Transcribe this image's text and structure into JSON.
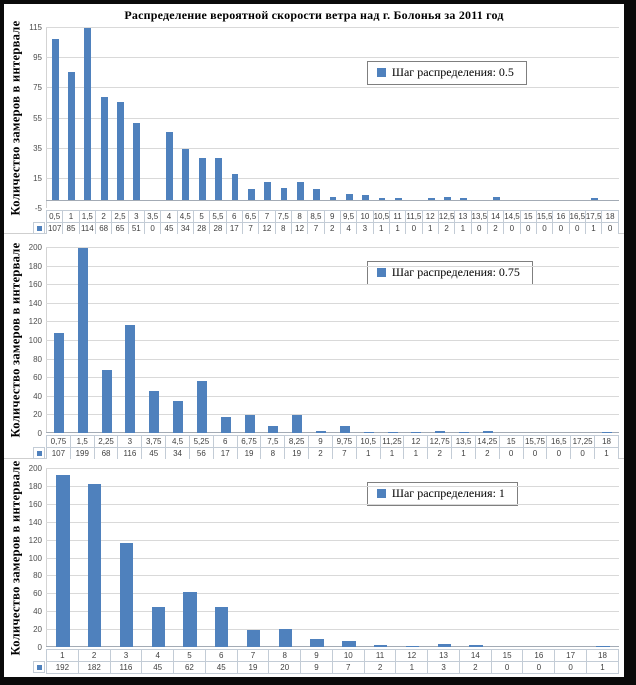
{
  "title": "Распределение вероятной скорости ветра над г. Болонья за 2011 год",
  "colors": {
    "bar": "#4f81bd",
    "gridline": "#d9d9d9",
    "axis_line": "#a3abb5",
    "table_border": "#c3ccd6",
    "text": "#404040"
  },
  "chart_data": [
    {
      "type": "bar",
      "legend": "Шаг распределения: 0.5",
      "ylabel": "Количество замеров в интервале",
      "categories": [
        "0,5",
        "1",
        "1,5",
        "2",
        "2,5",
        "3",
        "3,5",
        "4",
        "4,5",
        "5",
        "5,5",
        "6",
        "6,5",
        "7",
        "7,5",
        "8",
        "8,5",
        "9",
        "9,5",
        "10",
        "10,5",
        "11",
        "11,5",
        "12",
        "12,5",
        "13",
        "13,5",
        "14",
        "14,5",
        "15",
        "15,5",
        "16",
        "16,5",
        "17,5",
        "18"
      ],
      "values": [
        107,
        85,
        114,
        68,
        65,
        51,
        0,
        45,
        34,
        28,
        28,
        17,
        7,
        12,
        8,
        12,
        7,
        2,
        4,
        3,
        1,
        1,
        0,
        1,
        2,
        1,
        0,
        2,
        0,
        0,
        0,
        0,
        0,
        1,
        0
      ],
      "ylim": [
        -5,
        115
      ],
      "yticks": [
        115,
        95,
        75,
        55,
        35,
        15,
        -5
      ],
      "grid": true,
      "legend_position": "inside-top-right",
      "data_table": true
    },
    {
      "type": "bar",
      "legend": "Шаг распределения: 0.75",
      "ylabel": "Количество замеров в интервале",
      "categories": [
        "0,75",
        "1,5",
        "2,25",
        "3",
        "3,75",
        "4,5",
        "5,25",
        "6",
        "6,75",
        "7,5",
        "8,25",
        "9",
        "9,75",
        "10,5",
        "11,25",
        "12",
        "12,75",
        "13,5",
        "14,25",
        "15",
        "15,75",
        "16,5",
        "17,25",
        "18"
      ],
      "values": [
        107,
        199,
        68,
        116,
        45,
        34,
        56,
        17,
        19,
        8,
        19,
        2,
        7,
        1,
        1,
        1,
        2,
        1,
        2,
        0,
        0,
        0,
        0,
        1
      ],
      "ylim": [
        0,
        200
      ],
      "yticks": [
        200,
        180,
        160,
        140,
        120,
        100,
        80,
        60,
        40,
        20,
        0
      ],
      "grid": true,
      "legend_position": "inside-top-right",
      "data_table": true
    },
    {
      "type": "bar",
      "legend": "Шаг распределения: 1",
      "ylabel": "Количество замеров в интервале",
      "categories": [
        "1",
        "2",
        "3",
        "4",
        "5",
        "6",
        "7",
        "8",
        "9",
        "10",
        "11",
        "12",
        "13",
        "14",
        "15",
        "16",
        "17",
        "18"
      ],
      "values": [
        192,
        182,
        116,
        45,
        62,
        45,
        19,
        20,
        9,
        7,
        2,
        1,
        3,
        2,
        0,
        0,
        0,
        1
      ],
      "ylim": [
        0,
        200
      ],
      "yticks": [
        200,
        180,
        160,
        140,
        120,
        100,
        80,
        60,
        40,
        20,
        0
      ],
      "grid": true,
      "legend_position": "inside-top-right",
      "data_table": true
    }
  ]
}
